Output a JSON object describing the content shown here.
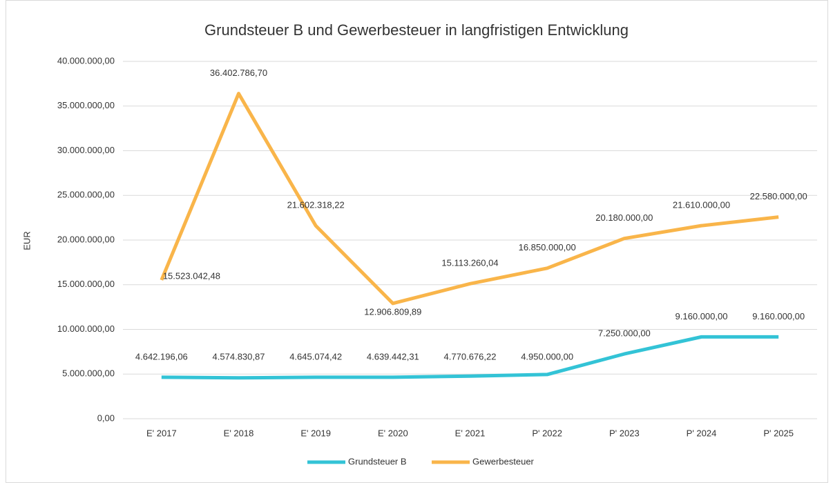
{
  "chart_data": {
    "type": "line",
    "title": "Grundsteuer B und Gewerbesteuer in langfristigen Entwicklung",
    "y_label": "EUR",
    "categories": [
      "E' 2017",
      "E' 2018",
      "E' 2019",
      "E' 2020",
      "E' 2021",
      "P' 2022",
      "P' 2023",
      "P' 2024",
      "P' 2025"
    ],
    "series": [
      {
        "name": "Grundsteuer B",
        "color": "#33c3d6",
        "values": [
          4642196.06,
          4574830.87,
          4645074.42,
          4639442.31,
          4770676.22,
          4950000,
          7250000,
          9160000,
          9160000
        ],
        "value_labels": [
          "4.642.196,06",
          "4.574.830,87",
          "4.645.074,42",
          "4.639.442,31",
          "4.770.676,22",
          "4.950.000,00",
          "7.250.000,00",
          "9.160.000,00",
          "9.160.000,00"
        ]
      },
      {
        "name": "Gewerbesteuer",
        "color": "#f9b54a",
        "values": [
          15523042.48,
          36402786.7,
          21602318.22,
          12906809.89,
          15113260.04,
          16850000,
          20180000,
          21610000,
          22580000
        ],
        "value_labels": [
          "15.523.042,48",
          "36.402.786,70",
          "21.602.318,22",
          "12.906.809,89",
          "15.113.260,04",
          "16.850.000,00",
          "20.180.000,00",
          "21.610.000,00",
          "22.580.000,00"
        ]
      }
    ],
    "ylim": [
      0,
      40000000
    ],
    "yticks": [
      {
        "value": 0,
        "label": "0,00"
      },
      {
        "value": 5000000,
        "label": "5.000.000,00"
      },
      {
        "value": 10000000,
        "label": "10.000.000,00"
      },
      {
        "value": 15000000,
        "label": "15.000.000,00"
      },
      {
        "value": 20000000,
        "label": "20.000.000,00"
      },
      {
        "value": 25000000,
        "label": "25.000.000,00"
      },
      {
        "value": 30000000,
        "label": "30.000.000,00"
      },
      {
        "value": 35000000,
        "label": "35.000.000,00"
      },
      {
        "value": 40000000,
        "label": "40.000.000,00"
      }
    ],
    "grid": true,
    "legend": "bottom"
  }
}
